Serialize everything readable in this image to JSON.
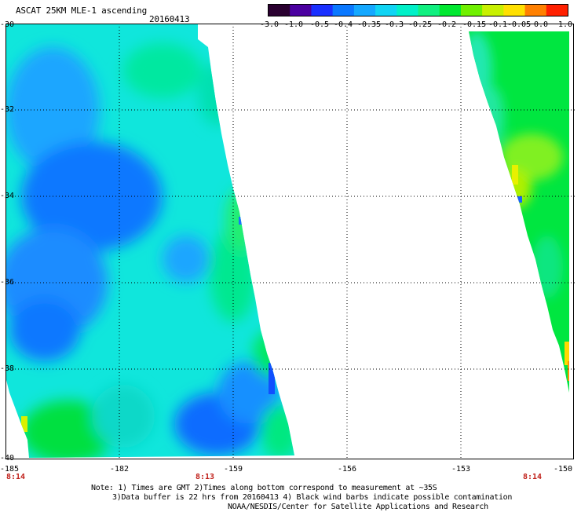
{
  "header": {
    "title": "ASCAT 25KM MLE-1 ascending",
    "date": "20160413"
  },
  "colorbar": {
    "labels": [
      "-3.0",
      "-1.0",
      "-0.5",
      "-0.4",
      "-0.35",
      "-0.3",
      "-0.25",
      "-0.2",
      "-0.15",
      "-0.1",
      "-0.05",
      "0.0",
      "1.0"
    ],
    "colors": [
      "#2a0030",
      "#4b00a0",
      "#1a30ff",
      "#0a78ff",
      "#14a8ff",
      "#10d4f4",
      "#00f0c8",
      "#10f080",
      "#00e830",
      "#70f000",
      "#c8f000",
      "#ffe000",
      "#ff8000",
      "#ff2000"
    ]
  },
  "map": {
    "lat_labels": [
      "-30",
      "-32",
      "-34",
      "-36",
      "-38",
      "-40"
    ],
    "lon_labels": [
      "-185",
      "-182",
      "-159",
      "-156",
      "-153",
      "-150"
    ],
    "time_labels": [
      "8:14",
      "8:13",
      "8:14"
    ]
  },
  "notes": {
    "line1": "Note: 1) Times are GMT 2)Times along bottom correspond to measurement at ~35S",
    "line2": "3)Data buffer is 22 hrs from 20160413 4) Black wind barbs indicate possible contamination",
    "line3": "NOAA/NESDIS/Center for Satellite Applications and Research"
  }
}
